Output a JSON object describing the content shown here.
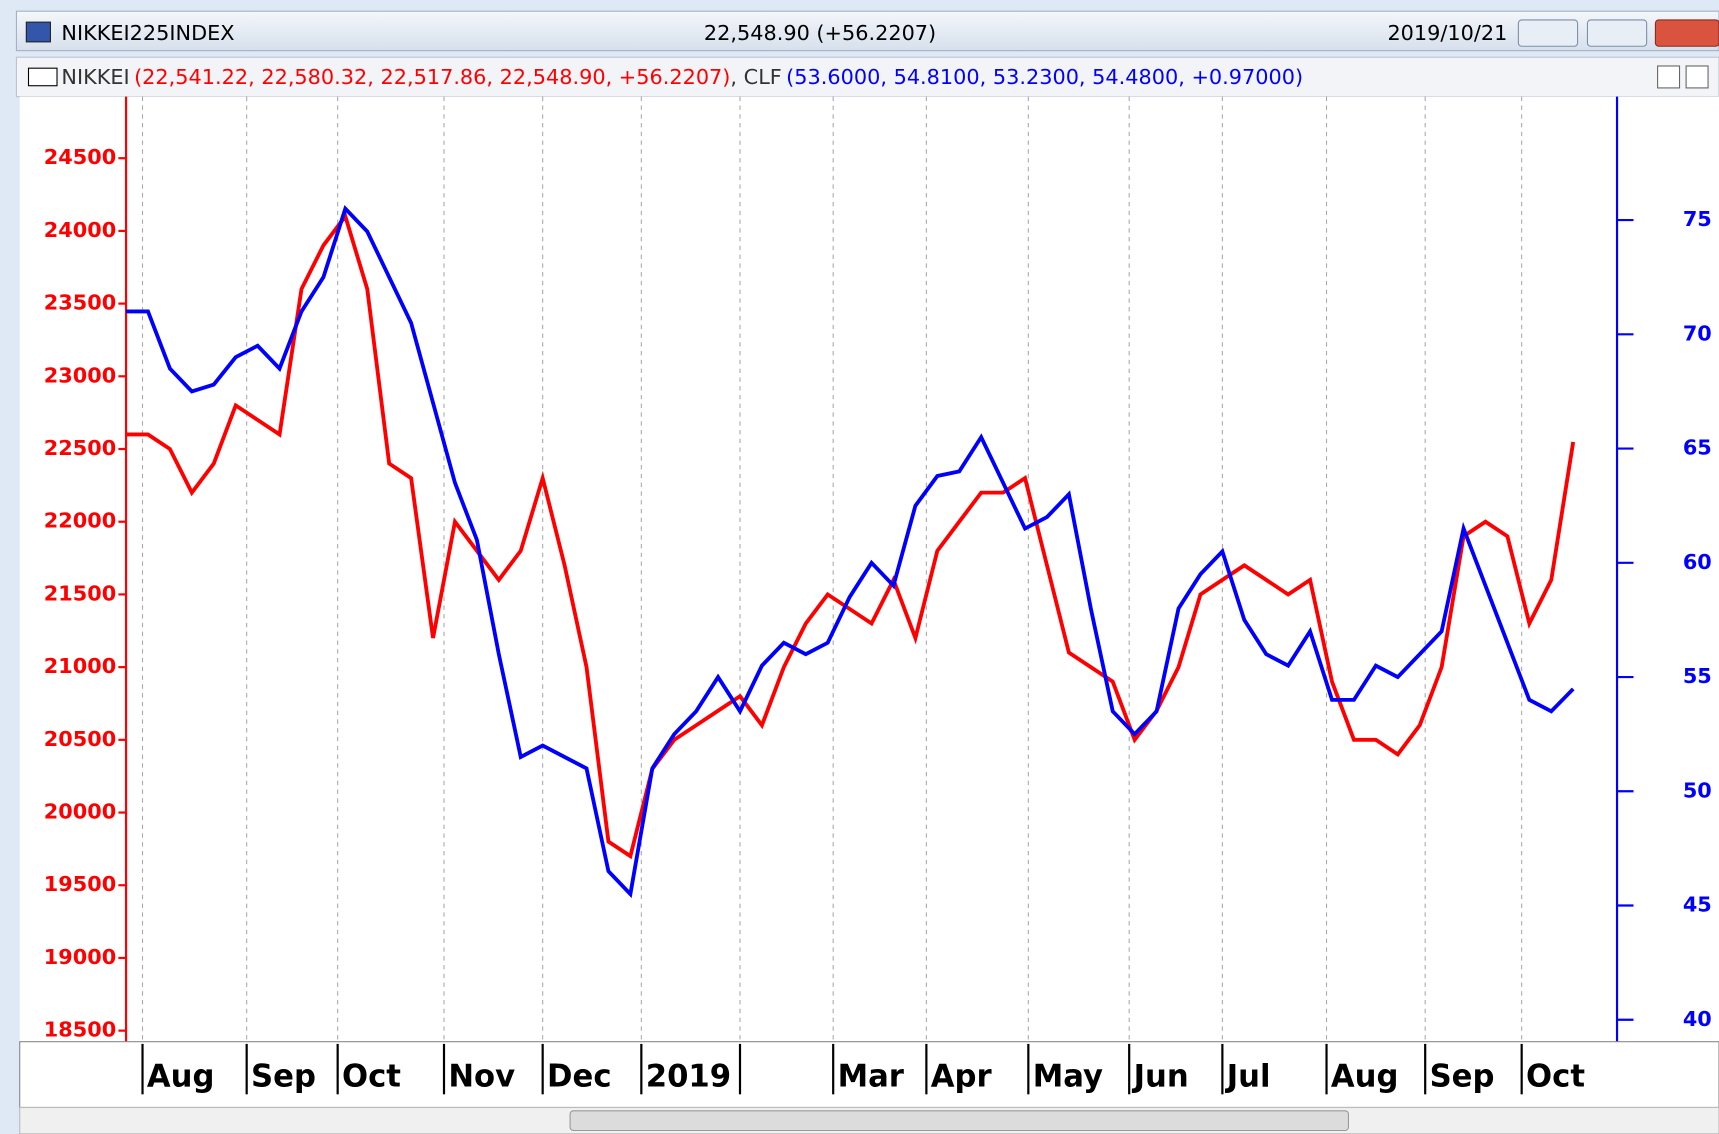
{
  "header": {
    "title": "NIKKEI225INDEX",
    "quote": "22,548.90 (+56.2207)",
    "date": "2019/10/21",
    "quote0": "(22,541.22, 22,580.32, 22,517.86, 22,548.90, +56.2207)",
    "separator": ", ",
    "quote1": "(53.6000, 54.8100, 53.2300, 54.4800, +0.97000)"
  },
  "chart_data": {
    "type": "line",
    "x": [
      0,
      1,
      2,
      3,
      4,
      5,
      6,
      7,
      8,
      9,
      10,
      11,
      12,
      13,
      14,
      15,
      16,
      17,
      18,
      19,
      20,
      21,
      22,
      23,
      24,
      25,
      26,
      27,
      28,
      29,
      30,
      31,
      32,
      33,
      34,
      35,
      36,
      37,
      38,
      39,
      40,
      41,
      42,
      43,
      44,
      45,
      46,
      47,
      48,
      49,
      50,
      51,
      52,
      53,
      54,
      55,
      56,
      57,
      58,
      59,
      60,
      61,
      62,
      63,
      64,
      65,
      66
    ],
    "series": [
      {
        "name": "NIKKEI",
        "color": "#ff0000",
        "axis": "y",
        "values": [
          22600,
          22600,
          22500,
          22200,
          22400,
          22800,
          22700,
          22600,
          23600,
          23900,
          24100,
          23600,
          22400,
          22300,
          21200,
          22000,
          21800,
          21600,
          21800,
          22300,
          21700,
          21000,
          19800,
          19700,
          20300,
          20500,
          20600,
          20700,
          20800,
          20600,
          21000,
          21300,
          21500,
          21400,
          21300,
          21600,
          21200,
          21800,
          22000,
          22200,
          22200,
          22300,
          21700,
          21100,
          21000,
          20900,
          20500,
          20700,
          21000,
          21500,
          21600,
          21700,
          21600,
          21500,
          21600,
          20900,
          20500,
          20500,
          20400,
          20600,
          21000,
          21900,
          22000,
          21900,
          21300,
          21600,
          22549
        ]
      },
      {
        "name": "CLF",
        "color": "#0000ff",
        "axis": "y2",
        "values": [
          71,
          71,
          68.5,
          67.5,
          67.8,
          69,
          69.5,
          68.5,
          71,
          72.5,
          75.5,
          74.5,
          72.5,
          70.5,
          67,
          63.5,
          61,
          56,
          51.5,
          52,
          51.5,
          51,
          46.5,
          45.5,
          51,
          52.5,
          53.5,
          55,
          53.5,
          55.5,
          56.5,
          56,
          56.5,
          58.5,
          60,
          59,
          62.5,
          63.8,
          64,
          65.5,
          63.5,
          61.5,
          62,
          63,
          58,
          53.5,
          52.5,
          53.5,
          58,
          59.5,
          60.5,
          57.5,
          56,
          55.5,
          57,
          54,
          54,
          55.5,
          55,
          56,
          57,
          61.5,
          59,
          56.5,
          54,
          53.5,
          54.48
        ]
      }
    ],
    "xlim": [
      0,
      68
    ],
    "xticks": [
      {
        "value": 0.75,
        "label": "Aug"
      },
      {
        "value": 5.5,
        "label": "Sep"
      },
      {
        "value": 9.65,
        "label": "Oct"
      },
      {
        "value": 14.5,
        "label": "Nov"
      },
      {
        "value": 19,
        "label": "Dec"
      },
      {
        "value": 23.5,
        "label": "2019"
      },
      {
        "value": 28,
        "label": null
      },
      {
        "value": 32.25,
        "label": "Mar"
      },
      {
        "value": 36.5,
        "label": "Apr"
      },
      {
        "value": 41.15,
        "label": "May"
      },
      {
        "value": 45.75,
        "label": "Jun"
      },
      {
        "value": 50,
        "label": "Jul"
      },
      {
        "value": 54.75,
        "label": "Aug"
      },
      {
        "value": 59.25,
        "label": "Sep"
      },
      {
        "value": 63.65,
        "label": "Oct"
      }
    ],
    "ylim": [
      18424,
      24923
    ],
    "yticks": [
      18500,
      19000,
      19500,
      20000,
      20500,
      21000,
      21500,
      22000,
      22500,
      23000,
      23500,
      24000,
      24500
    ],
    "y2lim": [
      39.04,
      80.4
    ],
    "y2ticks": [
      40,
      45,
      50,
      55,
      60,
      65,
      70,
      75
    ],
    "grid": true
  }
}
